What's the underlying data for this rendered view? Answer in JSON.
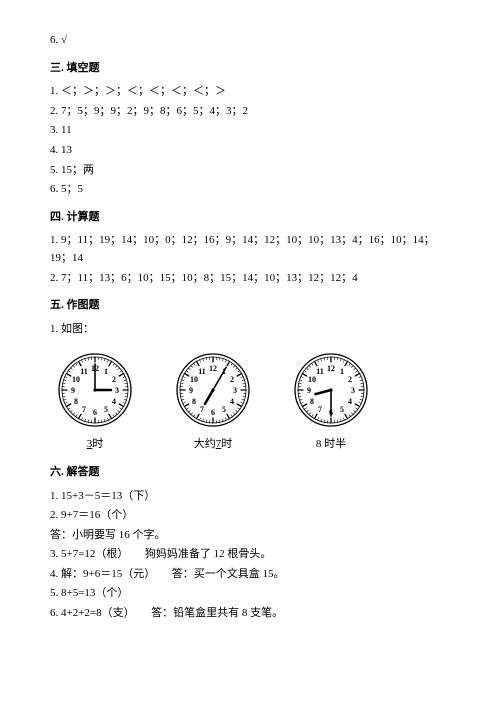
{
  "top_line": "6. √",
  "s3": {
    "heading": "三. 填空题",
    "lines": [
      "1. ＜；＞；＞；＜；＜；＜；＜；＞",
      "2. 7；5；9；9；2；9；8；6；5；4；3；2",
      "3. 11",
      "4. 13",
      "5. 15；两",
      "6. 5；5"
    ]
  },
  "s4": {
    "heading": "四. 计算题",
    "lines": [
      "1. 9；11；19；14；10；0；12；16；9；14；12；10；10；13；4；16；10；14；19；14",
      "2. 7；11；13；6；10；15；10；8；15；14；10；13；12；12；4"
    ]
  },
  "s5": {
    "heading": "五. 作图题",
    "line1": "1. 如图：",
    "clocks": [
      {
        "hour_angle": 90,
        "minute_angle": 0,
        "label_prefix": "",
        "label_value": "3",
        "label_suffix": "时"
      },
      {
        "hour_angle": 210,
        "minute_angle": 30,
        "label_prefix": "大约",
        "label_value": "7",
        "label_suffix": "时"
      },
      {
        "hour_angle": 255,
        "minute_angle": 180,
        "label_prefix": "",
        "label_value": "8 时半",
        "label_suffix": ""
      }
    ],
    "clock_style": {
      "radius": 36,
      "face_fill": "#ffffff",
      "stroke": "#000000",
      "tick_color": "#000000",
      "num_font": 8,
      "hour_len": 16,
      "minute_len": 26,
      "hand_color": "#000000"
    }
  },
  "s6": {
    "heading": "六. 解答题",
    "lines": [
      "1. 15+3－5＝13（下）",
      "2. 9+7＝16（个）",
      "",
      "答：小明要写 16 个字。",
      "3. 5+7=12（根）　　狗妈妈准备了 12 根骨头。",
      "4. 解：9+6＝15（元）　　答：买一个文具盒 15。",
      "5. 8+5=13（个）",
      "6. 4+2+2=8（支）　　答：铅笔盒里共有 8 支笔。"
    ]
  }
}
